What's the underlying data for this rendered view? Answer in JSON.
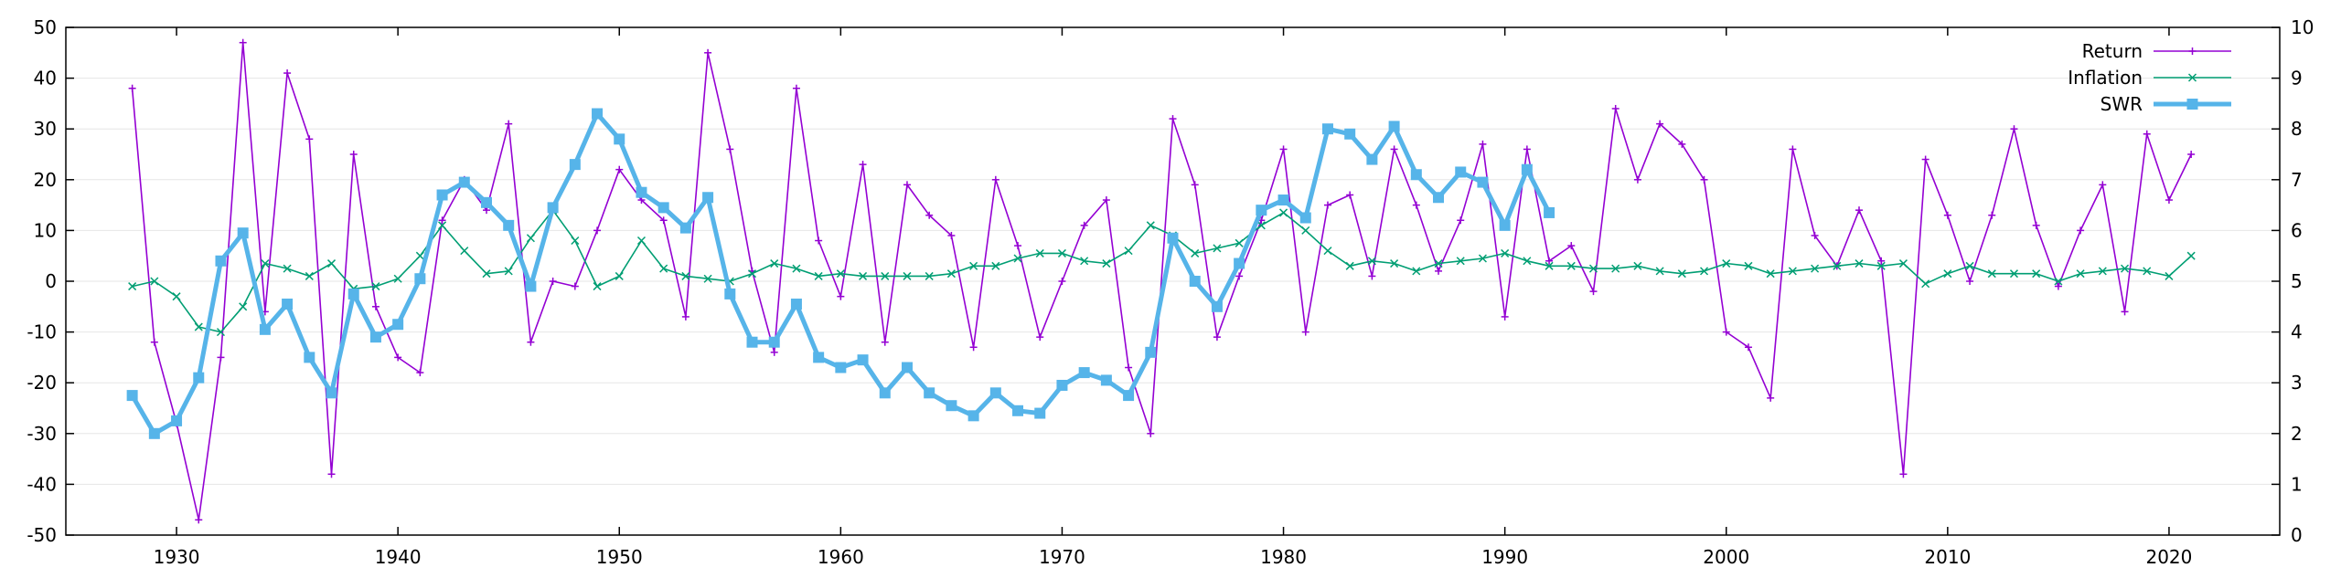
{
  "chart_data": {
    "type": "line",
    "title": "",
    "xlabel": "",
    "ylabel": "",
    "y2label": "",
    "xlim": [
      1925,
      2025
    ],
    "ylim": [
      -50,
      50
    ],
    "y2lim": [
      0,
      10
    ],
    "x_ticks": [
      1930,
      1940,
      1950,
      1960,
      1970,
      1980,
      1990,
      2000,
      2010,
      2020
    ],
    "y_ticks": [
      -50,
      -40,
      -30,
      -20,
      -10,
      0,
      10,
      20,
      30,
      40,
      50
    ],
    "y2_ticks": [
      0,
      1,
      2,
      3,
      4,
      5,
      6,
      7,
      8,
      9,
      10
    ],
    "grid": true,
    "legend_position": "top-right",
    "series": [
      {
        "name": "Return",
        "axis": "left",
        "color": "#9400d3",
        "marker": "plus",
        "x": [
          1928,
          1929,
          1930,
          1931,
          1932,
          1933,
          1934,
          1935,
          1936,
          1937,
          1938,
          1939,
          1940,
          1941,
          1942,
          1943,
          1944,
          1945,
          1946,
          1947,
          1948,
          1949,
          1950,
          1951,
          1952,
          1953,
          1954,
          1955,
          1956,
          1957,
          1958,
          1959,
          1960,
          1961,
          1962,
          1963,
          1964,
          1965,
          1966,
          1967,
          1968,
          1969,
          1970,
          1971,
          1972,
          1973,
          1974,
          1975,
          1976,
          1977,
          1978,
          1979,
          1980,
          1981,
          1982,
          1983,
          1984,
          1985,
          1986,
          1987,
          1988,
          1989,
          1990,
          1991,
          1992,
          1993,
          1994,
          1995,
          1996,
          1997,
          1998,
          1999,
          2000,
          2001,
          2002,
          2003,
          2004,
          2005,
          2006,
          2007,
          2008,
          2009,
          2010,
          2011,
          2012,
          2013,
          2014,
          2015,
          2016,
          2017,
          2018,
          2019,
          2020,
          2021
        ],
        "y": [
          38,
          -12,
          -28,
          -47,
          -15,
          47,
          -6,
          41,
          28,
          -38,
          25,
          -5,
          -15,
          -18,
          12,
          20,
          14,
          31,
          -12,
          0,
          -1,
          10,
          22,
          16,
          12,
          -7,
          45,
          26,
          2,
          -14,
          38,
          8,
          -3,
          23,
          -12,
          19,
          13,
          9,
          -13,
          20,
          7,
          -11,
          0,
          11,
          16,
          -17,
          -30,
          32,
          19,
          -11,
          1,
          12,
          26,
          -10,
          15,
          17,
          1,
          26,
          15,
          2,
          12,
          27,
          -7,
          26,
          4,
          7,
          -2,
          34,
          20,
          31,
          27,
          20,
          -10,
          -13,
          -23,
          26,
          9,
          3,
          14,
          4,
          -38,
          24,
          13,
          0,
          13,
          30,
          11,
          -1,
          10,
          19,
          -6,
          29,
          16,
          25
        ]
      },
      {
        "name": "Inflation",
        "axis": "left",
        "color": "#009e73",
        "marker": "cross",
        "x": [
          1928,
          1929,
          1930,
          1931,
          1932,
          1933,
          1934,
          1935,
          1936,
          1937,
          1938,
          1939,
          1940,
          1941,
          1942,
          1943,
          1944,
          1945,
          1946,
          1947,
          1948,
          1949,
          1950,
          1951,
          1952,
          1953,
          1954,
          1955,
          1956,
          1957,
          1958,
          1959,
          1960,
          1961,
          1962,
          1963,
          1964,
          1965,
          1966,
          1967,
          1968,
          1969,
          1970,
          1971,
          1972,
          1973,
          1974,
          1975,
          1976,
          1977,
          1978,
          1979,
          1980,
          1981,
          1982,
          1983,
          1984,
          1985,
          1986,
          1987,
          1988,
          1989,
          1990,
          1991,
          1992,
          1993,
          1994,
          1995,
          1996,
          1997,
          1998,
          1999,
          2000,
          2001,
          2002,
          2003,
          2004,
          2005,
          2006,
          2007,
          2008,
          2009,
          2010,
          2011,
          2012,
          2013,
          2014,
          2015,
          2016,
          2017,
          2018,
          2019,
          2020,
          2021
        ],
        "y": [
          -1,
          0,
          -3,
          -9,
          -10,
          -5,
          3.5,
          2.5,
          1,
          3.5,
          -1.5,
          -1,
          0.5,
          5,
          11,
          6,
          1.5,
          2,
          8.5,
          14,
          8,
          -1,
          1,
          8,
          2.5,
          1,
          0.5,
          0,
          1.5,
          3.5,
          2.5,
          1,
          1.5,
          1,
          1,
          1,
          1,
          1.5,
          3,
          3,
          4.5,
          5.5,
          5.5,
          4,
          3.5,
          6,
          11,
          9,
          5.5,
          6.5,
          7.5,
          11,
          13.5,
          10,
          6,
          3,
          4,
          3.5,
          2,
          3.5,
          4,
          4.5,
          5.5,
          4,
          3,
          3,
          2.5,
          2.5,
          3,
          2,
          1.5,
          2,
          3.5,
          3,
          1.5,
          2,
          2.5,
          3,
          3.5,
          3,
          3.5,
          -0.5,
          1.5,
          3,
          1.5,
          1.5,
          1.5,
          0,
          1.5,
          2,
          2.5,
          2,
          1,
          5
        ]
      },
      {
        "name": "SWR",
        "axis": "right",
        "color": "#56b4e9",
        "marker": "square",
        "x": [
          1928,
          1929,
          1930,
          1931,
          1932,
          1933,
          1934,
          1935,
          1936,
          1937,
          1938,
          1939,
          1940,
          1941,
          1942,
          1943,
          1944,
          1945,
          1946,
          1947,
          1948,
          1949,
          1950,
          1951,
          1952,
          1953,
          1954,
          1955,
          1956,
          1957,
          1958,
          1959,
          1960,
          1961,
          1962,
          1963,
          1964,
          1965,
          1966,
          1967,
          1968,
          1969,
          1970,
          1971,
          1972,
          1973,
          1974,
          1975,
          1976,
          1977,
          1978,
          1979,
          1980,
          1981,
          1982,
          1983,
          1984,
          1985,
          1986,
          1987,
          1988,
          1989,
          1990,
          1991,
          1992
        ],
        "y": [
          2.75,
          2,
          2.25,
          3.1,
          5.4,
          5.95,
          4.05,
          4.55,
          3.5,
          2.8,
          4.75,
          3.9,
          4.15,
          5.05,
          6.7,
          6.95,
          6.55,
          6.1,
          4.9,
          6.45,
          7.3,
          8.3,
          7.8,
          6.75,
          6.45,
          6.05,
          6.65,
          4.75,
          3.8,
          3.8,
          4.55,
          3.5,
          3.3,
          3.45,
          2.8,
          3.3,
          2.8,
          2.55,
          2.35,
          2.8,
          2.45,
          2.4,
          2.95,
          3.2,
          3.05,
          2.75,
          3.6,
          5.85,
          5,
          4.5,
          5.35,
          6.4,
          6.6,
          6.25,
          8,
          7.9,
          7.4,
          8.05,
          7.1,
          6.65,
          7.15,
          6.95,
          6.1,
          7.2,
          6.35
        ]
      }
    ]
  }
}
